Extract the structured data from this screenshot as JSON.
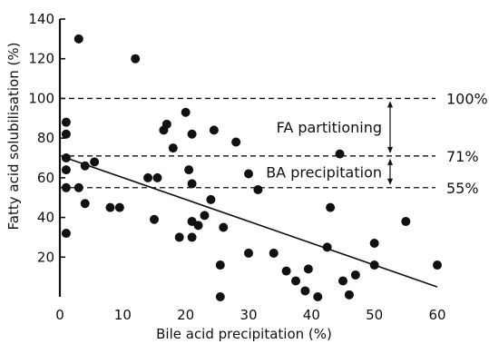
{
  "chart_data": {
    "type": "scatter",
    "title": "",
    "xlabel": "Bile acid precipitation (%)",
    "ylabel": "Fatty acid solubilisation (%)",
    "xlim": [
      0,
      60
    ],
    "ylim": [
      0,
      140
    ],
    "xticks": [
      0,
      10,
      20,
      30,
      40,
      50,
      60
    ],
    "yticks": [
      20,
      40,
      60,
      80,
      100,
      120,
      140
    ],
    "grid": false,
    "points": [
      {
        "x": 3,
        "y": 130
      },
      {
        "x": 12,
        "y": 120
      },
      {
        "x": 1,
        "y": 88
      },
      {
        "x": 1,
        "y": 82
      },
      {
        "x": 1,
        "y": 70
      },
      {
        "x": 1,
        "y": 64
      },
      {
        "x": 1,
        "y": 55
      },
      {
        "x": 1,
        "y": 32
      },
      {
        "x": 3,
        "y": 55
      },
      {
        "x": 4,
        "y": 66
      },
      {
        "x": 5.5,
        "y": 68
      },
      {
        "x": 4,
        "y": 47
      },
      {
        "x": 8,
        "y": 45
      },
      {
        "x": 9.5,
        "y": 45
      },
      {
        "x": 14,
        "y": 60
      },
      {
        "x": 15.5,
        "y": 60
      },
      {
        "x": 15,
        "y": 39
      },
      {
        "x": 16.5,
        "y": 84
      },
      {
        "x": 17,
        "y": 87
      },
      {
        "x": 18,
        "y": 75
      },
      {
        "x": 19,
        "y": 30
      },
      {
        "x": 20,
        "y": 93
      },
      {
        "x": 21,
        "y": 82
      },
      {
        "x": 20.5,
        "y": 64
      },
      {
        "x": 21,
        "y": 57
      },
      {
        "x": 21,
        "y": 38
      },
      {
        "x": 22,
        "y": 36
      },
      {
        "x": 21,
        "y": 30
      },
      {
        "x": 23,
        "y": 41
      },
      {
        "x": 24,
        "y": 49
      },
      {
        "x": 24.5,
        "y": 84
      },
      {
        "x": 25.5,
        "y": 16
      },
      {
        "x": 25.5,
        "y": 0
      },
      {
        "x": 26,
        "y": 35
      },
      {
        "x": 28,
        "y": 78
      },
      {
        "x": 30,
        "y": 62
      },
      {
        "x": 30,
        "y": 22
      },
      {
        "x": 31.5,
        "y": 54
      },
      {
        "x": 34,
        "y": 22
      },
      {
        "x": 36,
        "y": 13
      },
      {
        "x": 37.5,
        "y": 8
      },
      {
        "x": 39,
        "y": 3
      },
      {
        "x": 39.5,
        "y": 14
      },
      {
        "x": 41,
        "y": 0
      },
      {
        "x": 42.5,
        "y": 25
      },
      {
        "x": 43,
        "y": 45
      },
      {
        "x": 44.5,
        "y": 72
      },
      {
        "x": 45,
        "y": 8
      },
      {
        "x": 46,
        "y": 1
      },
      {
        "x": 47,
        "y": 11
      },
      {
        "x": 50,
        "y": 27
      },
      {
        "x": 50,
        "y": 16
      },
      {
        "x": 55,
        "y": 38
      },
      {
        "x": 60,
        "y": 16
      }
    ],
    "regression_line": [
      {
        "x": 1,
        "y": 70
      },
      {
        "x": 60,
        "y": 5
      }
    ],
    "reference_lines": [
      {
        "y": 100,
        "label": "100%"
      },
      {
        "y": 71,
        "label": "71%"
      },
      {
        "y": 55,
        "label": "55%"
      }
    ],
    "annotations": {
      "upper": "FA partitioning",
      "lower": "BA precipitation"
    }
  }
}
